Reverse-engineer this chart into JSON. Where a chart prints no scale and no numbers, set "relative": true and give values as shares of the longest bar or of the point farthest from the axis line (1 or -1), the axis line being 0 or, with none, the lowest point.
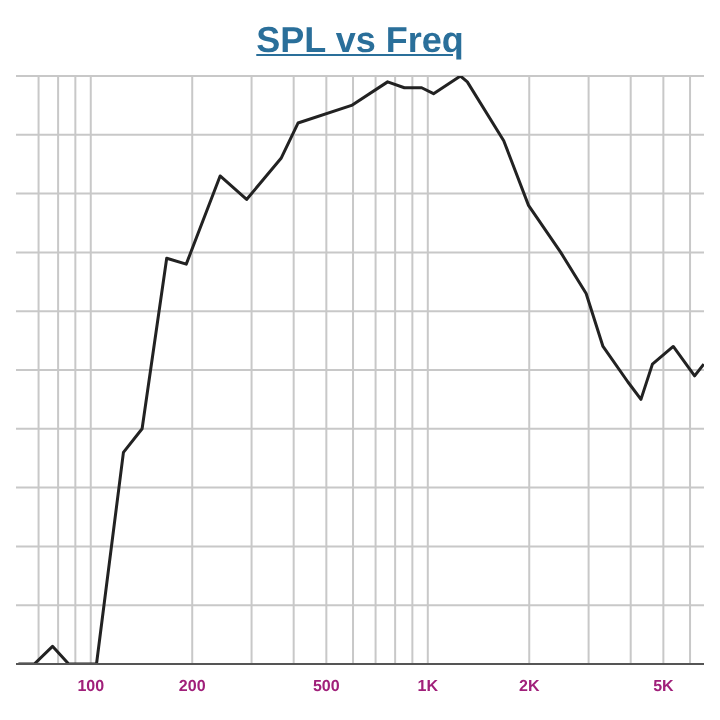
{
  "chart_data": {
    "type": "line",
    "title": "SPL vs Freq",
    "relative": true,
    "log": "x",
    "grid": true,
    "marker": "none",
    "line_style": "solid",
    "xlim": [
      60,
      6600
    ],
    "xticks": [
      100,
      200,
      500,
      {
        "value": 1000,
        "label": "1K"
      },
      {
        "value": 2000,
        "label": "2K"
      },
      {
        "value": 5000,
        "label": "5K"
      }
    ],
    "tick_labels": "x",
    "x": [
      61,
      68,
      77,
      86,
      104,
      125,
      142,
      168,
      192,
      242,
      290,
      367,
      412,
      594,
      760,
      852,
      959,
      1040,
      1250,
      1310,
      1680,
      1990,
      2480,
      2950,
      3310,
      3920,
      4290,
      4640,
      5350,
      6190,
      6590
    ],
    "series": [
      {
        "color": "#222222",
        "values": [
          0,
          0,
          0.03,
          0,
          0,
          0.36,
          0.4,
          0.69,
          0.68,
          0.83,
          0.79,
          0.86,
          0.92,
          0.95,
          0.99,
          0.98,
          0.98,
          0.97,
          1,
          0.99,
          0.89,
          0.78,
          0.7,
          0.63,
          0.54,
          0.48,
          0.45,
          0.51,
          0.54,
          0.49,
          0.51
        ]
      }
    ]
  }
}
